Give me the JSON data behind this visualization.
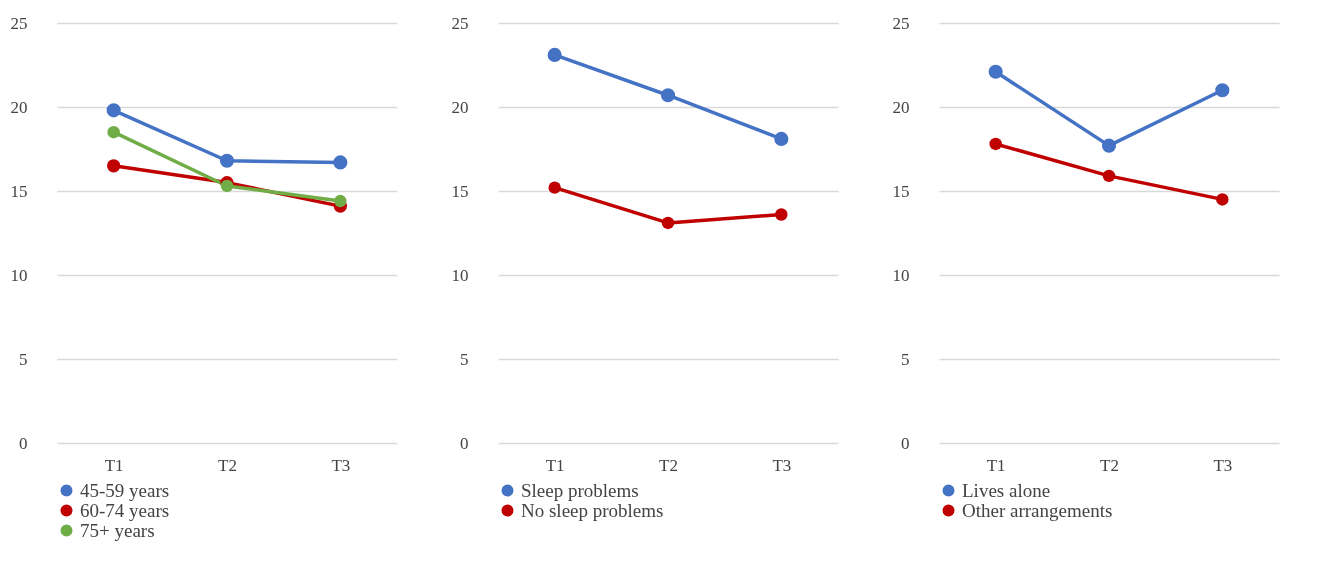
{
  "chart_data": [
    {
      "type": "line",
      "categories": [
        "T1",
        "T2",
        "T3"
      ],
      "ylim": [
        0,
        25
      ],
      "yticks": [
        0,
        5,
        10,
        15,
        20,
        25
      ],
      "grid": "y",
      "legend": "bottom",
      "marker": "circle",
      "line_style": "solid",
      "series": [
        {
          "name": "45-59 years",
          "color": "#4472c4",
          "values": [
            19.8,
            16.8,
            16.7
          ]
        },
        {
          "name": "60-74 years",
          "color": "#c00000",
          "values": [
            16.5,
            15.5,
            14.1
          ]
        },
        {
          "name": "75+ years",
          "color": "#70ad47",
          "values": [
            18.5,
            15.3,
            14.4
          ]
        }
      ]
    },
    {
      "type": "line",
      "categories": [
        "T1",
        "T2",
        "T3"
      ],
      "ylim": [
        0,
        25
      ],
      "yticks": [
        0,
        5,
        10,
        15,
        20,
        25
      ],
      "grid": "y",
      "legend": "bottom",
      "marker": "circle",
      "line_style": "solid",
      "series": [
        {
          "name": "Sleep problems",
          "color": "#4472c4",
          "values": [
            23.1,
            20.7,
            18.1
          ]
        },
        {
          "name": "No sleep problems",
          "color": "#c00000",
          "values": [
            15.2,
            13.1,
            13.6
          ]
        }
      ]
    },
    {
      "type": "line",
      "categories": [
        "T1",
        "T2",
        "T3"
      ],
      "ylim": [
        0,
        25
      ],
      "yticks": [
        0,
        5,
        10,
        15,
        20,
        25
      ],
      "grid": "y",
      "legend": "bottom",
      "marker": "circle",
      "line_style": "solid",
      "series": [
        {
          "name": "Lives alone",
          "color": "#4472c4",
          "values": [
            22.1,
            17.7,
            21.0
          ]
        },
        {
          "name": "Other arrangements",
          "color": "#c00000",
          "values": [
            17.8,
            15.9,
            14.5
          ]
        }
      ]
    }
  ]
}
